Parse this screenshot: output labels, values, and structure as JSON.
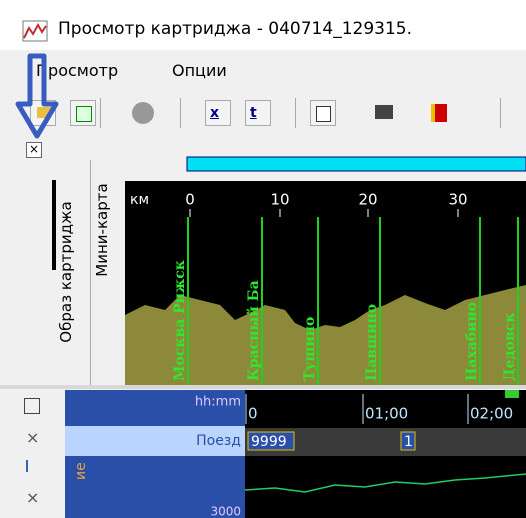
{
  "window": {
    "title": "Просмотр картриджа - 040714_129315."
  },
  "menu": [
    "Просмотр",
    "Опции"
  ],
  "side_tabs": [
    "Образ картриджа",
    "Мини-карта"
  ],
  "map": {
    "unit": "км",
    "scale": [
      "0",
      "10",
      "20",
      "30"
    ],
    "stations": [
      "Москва Рижск",
      "Красный Ба",
      "Тушино",
      "Павшино",
      "Нахабино",
      "Дедовск"
    ]
  },
  "timeline": {
    "header": "hh:mm",
    "ticks": [
      "0",
      "01;00",
      "02;00"
    ],
    "row_label": "Поезд",
    "fields": [
      "9999",
      "1"
    ],
    "axis_value": "3000",
    "side_label": "ие"
  }
}
